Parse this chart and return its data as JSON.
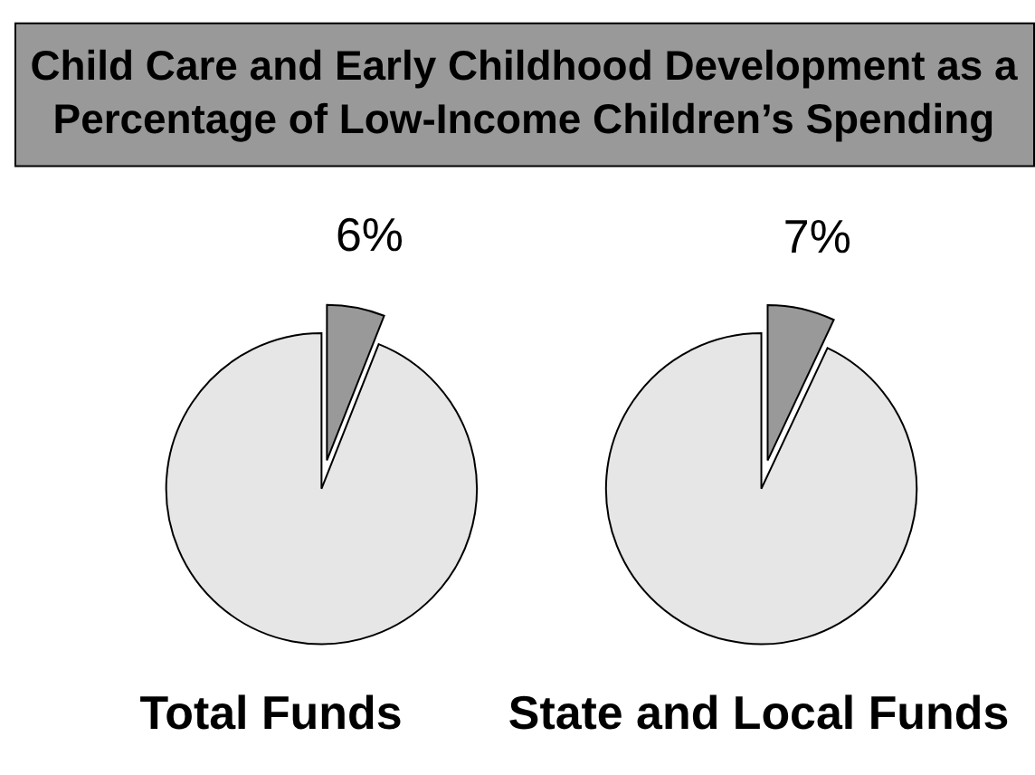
{
  "chart_data": [
    {
      "type": "pie",
      "title": "Child Care and Early Childhood Development as a Percentage of Low-Income Children’s Spending",
      "xlabel": "Total Funds",
      "categories": [
        null,
        null
      ],
      "values": [
        6,
        94
      ],
      "colors": [
        "#999999",
        "#e6e6e6"
      ],
      "value_labels": [
        "6%",
        null
      ]
    },
    {
      "type": "pie",
      "xlabel": "State and Local Funds",
      "categories": [
        null,
        null
      ],
      "values": [
        7,
        93
      ],
      "colors": [
        "#999999",
        "#e6e6e6"
      ],
      "value_labels": [
        "7%",
        null
      ]
    }
  ]
}
